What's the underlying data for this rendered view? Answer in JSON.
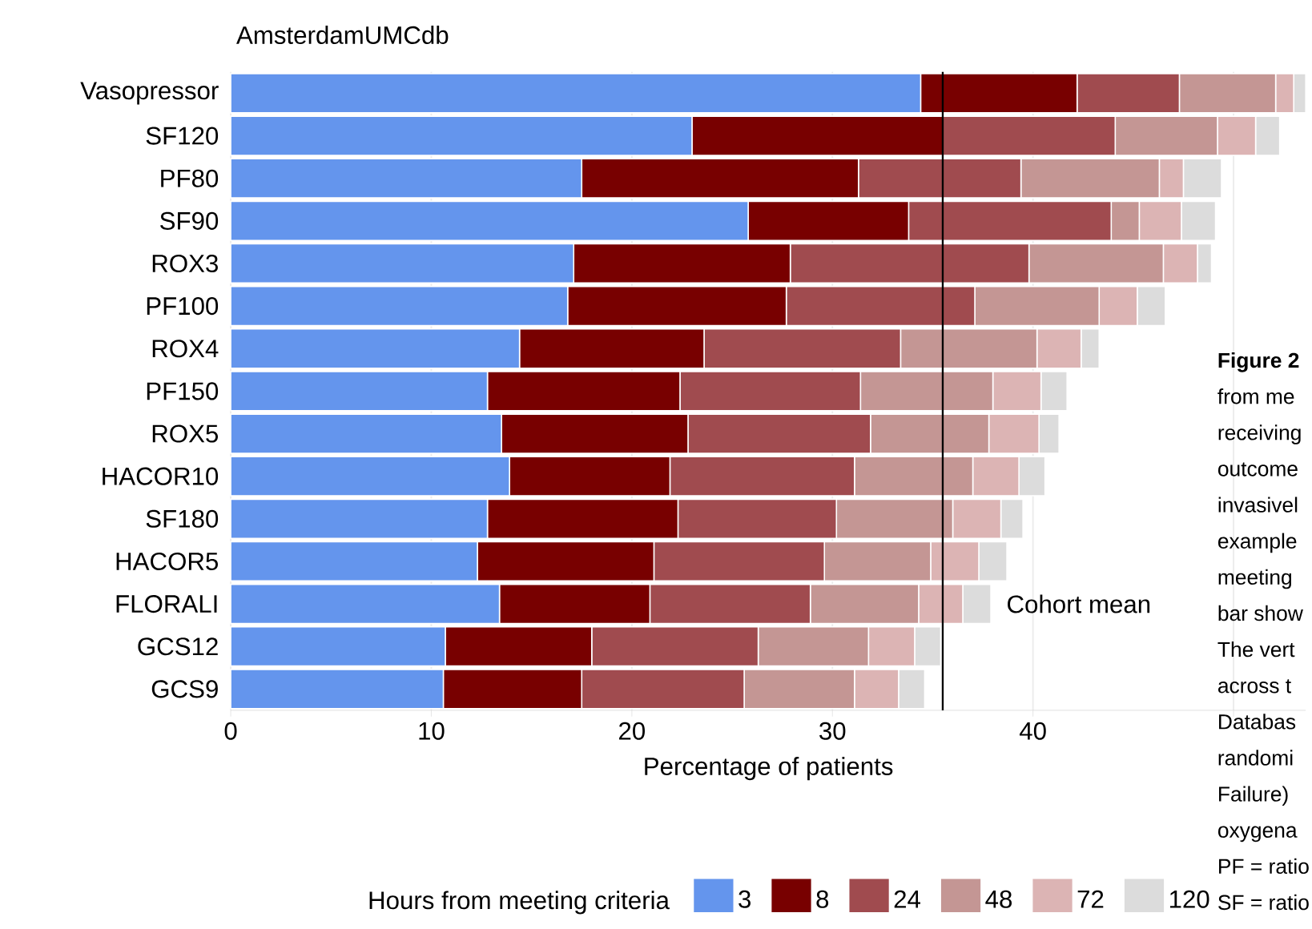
{
  "chart_data": {
    "type": "bar",
    "orientation": "horizontal",
    "stacked": true,
    "title": "AmsterdamUMCdb",
    "xlabel": "Percentage of patients",
    "legend_title": "Hours from meeting criteria",
    "legend": "bottom",
    "grid": "x",
    "categories": [
      "Vasopressor",
      "SF120",
      "PF80",
      "SF90",
      "ROX3",
      "PF100",
      "ROX4",
      "PF150",
      "ROX5",
      "HACOR10",
      "SF180",
      "HACOR5",
      "FLORALI",
      "GCS12",
      "GCS9"
    ],
    "xlim": [
      0,
      53.6
    ],
    "xticks": [
      0,
      10,
      20,
      30,
      40,
      {
        "value": 50,
        "label": null
      }
    ],
    "series": [
      {
        "name": "3",
        "color": "#6495ed",
        "values": [
          34.4,
          23.0,
          17.5,
          25.8,
          17.1,
          16.8,
          14.4,
          12.8,
          13.5,
          13.9,
          12.8,
          12.3,
          13.4,
          10.7,
          10.6
        ]
      },
      {
        "name": "8",
        "color": "#780000",
        "values": [
          7.8,
          12.5,
          13.8,
          8.0,
          10.8,
          10.9,
          9.2,
          9.6,
          9.3,
          8.0,
          9.5,
          8.8,
          7.5,
          7.3,
          6.9
        ]
      },
      {
        "name": "24",
        "color": "#a04b4f",
        "values": [
          5.1,
          8.6,
          8.1,
          10.1,
          11.9,
          9.4,
          9.8,
          9.0,
          9.1,
          9.2,
          7.9,
          8.5,
          8.0,
          8.3,
          8.1
        ]
      },
      {
        "name": "48",
        "color": "#c49694",
        "values": [
          4.8,
          5.1,
          6.9,
          1.4,
          6.7,
          6.2,
          6.8,
          6.6,
          5.9,
          5.9,
          5.8,
          5.3,
          5.4,
          5.5,
          5.5
        ]
      },
      {
        "name": "72",
        "color": "#dcb4b4",
        "values": [
          0.9,
          1.9,
          1.2,
          2.1,
          1.7,
          1.9,
          2.2,
          2.4,
          2.5,
          2.3,
          2.4,
          2.4,
          2.2,
          2.3,
          2.2
        ]
      },
      {
        "name": "120",
        "color": "#dcdcdc",
        "values": [
          0.6,
          1.2,
          1.9,
          1.7,
          0.7,
          1.4,
          0.9,
          1.3,
          1.0,
          1.3,
          1.1,
          1.4,
          1.4,
          1.3,
          1.3
        ]
      }
    ],
    "ref_lines": [
      {
        "axis": "x",
        "value": 35.5,
        "label": "Cohort mean",
        "color": "#000000"
      }
    ],
    "annotations": [
      "Figure 2",
      "from me",
      "receiving",
      "outcome",
      "invasivel",
      "example",
      "meeting",
      "bar show",
      "The vert",
      "across t",
      "Databas",
      "randomi",
      "Failure)",
      "oxygena",
      "PF = ratio",
      "SF = ratio"
    ]
  }
}
